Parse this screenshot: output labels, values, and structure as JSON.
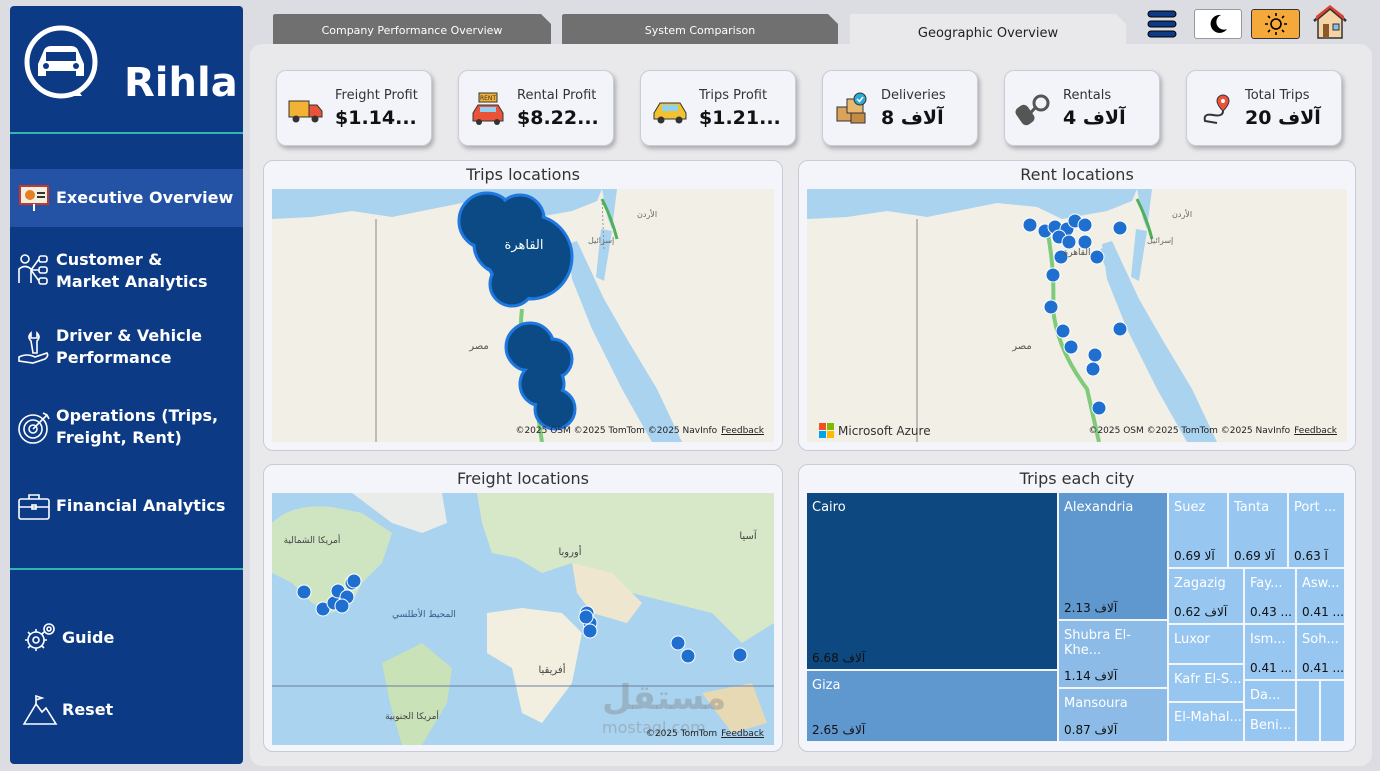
{
  "brand": {
    "name": "Rihla"
  },
  "sidebar": {
    "items": [
      {
        "label": "Executive Overview",
        "icon": "presentation-icon"
      },
      {
        "label": "Customer & Market Analytics",
        "icon": "people-network-icon"
      },
      {
        "label": "Driver & Vehicle Performance",
        "icon": "wrench-hand-icon"
      },
      {
        "label": "Operations (Trips, Freight, Rent)",
        "icon": "target-icon"
      },
      {
        "label": "Financial Analytics",
        "icon": "briefcase-icon"
      }
    ],
    "guide_label": "Guide",
    "reset_label": "Reset"
  },
  "tabs": [
    {
      "label": "Company Performance Overview"
    },
    {
      "label": "System Comparison"
    },
    {
      "label": "Geographic Overview"
    }
  ],
  "kpis": [
    {
      "title": "Freight Profit",
      "value": "$1.14...",
      "icon": "delivery-truck-icon"
    },
    {
      "title": "Rental Profit",
      "value": "$8.22...",
      "icon": "rent-car-icon"
    },
    {
      "title": "Trips Profit",
      "value": "$1.21...",
      "icon": "taxi-icon"
    },
    {
      "title": "Deliveries",
      "value": "آلاف 8",
      "icon": "boxes-icon"
    },
    {
      "title": "Rentals",
      "value": "آلاف 4",
      "icon": "car-keys-icon"
    },
    {
      "title": "Total Trips",
      "value": "آلاف 20",
      "icon": "route-pin-icon"
    }
  ],
  "maps": {
    "trips": {
      "title": "Trips locations",
      "attribution": "©2025 OSM  ©2025 TomTom  ©2025 NavInfo",
      "feedback": "Feedback",
      "labels": {
        "cairo": "القاهرة",
        "egypt": "مصر",
        "jordan": "الأردن",
        "israel": "إسرائيل"
      }
    },
    "rent": {
      "title": "Rent locations",
      "attribution": "©2025 OSM  ©2025 TomTom  ©2025 NavInfo",
      "feedback": "Feedback",
      "azure": "Microsoft Azure",
      "labels": {
        "cairo": "القاهرة",
        "egypt": "مصر",
        "jordan": "الأردن",
        "israel": "إسرائيل"
      }
    },
    "freight": {
      "title": "Freight locations",
      "attribution": "©2025 TomTom",
      "feedback": "Feedback",
      "labels": {
        "na": "أمريكا الشمالية",
        "europe": "أوروبا",
        "asia": "آسيا",
        "atlantic": "المحيط الأطلسي",
        "africa": "أفريقيا",
        "sa": "أمريكا الجنوبية"
      }
    }
  },
  "treemap": {
    "title": "Trips each city",
    "cells": [
      {
        "city": "Cairo",
        "value": "6.68 آلاف"
      },
      {
        "city": "Giza",
        "value": "2.65 آلاف"
      },
      {
        "city": "Alexandria",
        "value": "2.13 آلاف"
      },
      {
        "city": "Shubra El-Khe...",
        "value": "1.14 آلاف"
      },
      {
        "city": "Mansoura",
        "value": "0.87 آلاف"
      },
      {
        "city": "Suez",
        "value": "0.69 آلا"
      },
      {
        "city": "Tanta",
        "value": "0.69 آلا"
      },
      {
        "city": "Port ...",
        "value": "0.63 آ"
      },
      {
        "city": "Zagazig",
        "value": "0.62 آلاف"
      },
      {
        "city": "Fay...",
        "value": "0.43 ..."
      },
      {
        "city": "Asw...",
        "value": "0.41 ..."
      },
      {
        "city": "Luxor",
        "value": ""
      },
      {
        "city": "Ism...",
        "value": "0.41 ..."
      },
      {
        "city": "Soh...",
        "value": "0.41 ..."
      },
      {
        "city": "Kafr El-S...",
        "value": ""
      },
      {
        "city": "Da...",
        "value": ""
      },
      {
        "city": "El-Mahal...",
        "value": ""
      },
      {
        "city": "Beni...",
        "value": ""
      }
    ]
  },
  "watermark": {
    "ar": "مستقل",
    "en": "mostaql.com"
  },
  "colors": {
    "sidebar": "#0d3a85",
    "accent": "#2fb6b0",
    "mapDot": "#1f6fd1",
    "treemapDark": "#0d4880"
  }
}
